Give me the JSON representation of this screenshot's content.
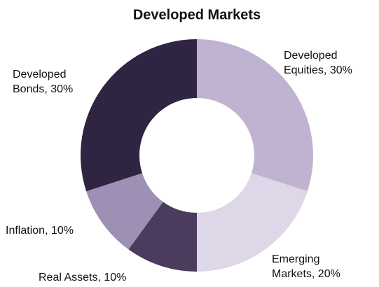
{
  "chart_data": {
    "type": "donut",
    "title": "Developed Markets",
    "labels": [
      [
        "Developed",
        "Equities, 30%"
      ],
      [
        "Emerging",
        "Markets, 20%"
      ],
      [
        "Real Assets, 10%"
      ],
      [
        "Inflation, 10%"
      ],
      [
        "Developed",
        "Bonds, 30%"
      ]
    ],
    "values": [
      30,
      20,
      10,
      10,
      30
    ],
    "colors": [
      "#bfb3d1",
      "#ddd7e7",
      "#4b3b5d",
      "#9e90b5",
      "#2f2441"
    ]
  }
}
